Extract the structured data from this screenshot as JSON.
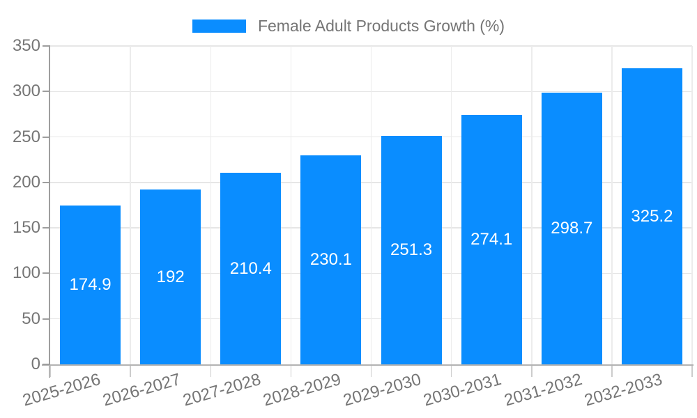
{
  "legend": {
    "label": "Female Adult Products Growth (%)"
  },
  "colors": {
    "bar": "#0a8dff",
    "grid_h": "#e6e6e6",
    "grid_v": "#ececec",
    "axis_line_y": "#9e9e9e",
    "axis_line_x": "#b3b3b3",
    "tick_x": "#cccccc",
    "tick_y": "#9e9e9e",
    "axis_text": "#757575",
    "legend_text": "#757575",
    "value_text": "#ffffff"
  },
  "chart_data": {
    "type": "bar",
    "title": "Female Adult Products Growth (%)",
    "categories": [
      "2025-2026",
      "2026-2027",
      "2027-2028",
      "2028-2029",
      "2029-2030",
      "2030-2031",
      "2031-2032",
      "2032-2033"
    ],
    "values": [
      174.9,
      192,
      210.4,
      230.1,
      251.3,
      274.1,
      298.7,
      325.2
    ],
    "value_labels": [
      "174.9",
      "192",
      "210.4",
      "230.1",
      "251.3",
      "274.1",
      "298.7",
      "325.2"
    ],
    "xlabel": "",
    "ylabel": "",
    "ylim": [
      0,
      350
    ],
    "yticks": [
      0,
      50,
      100,
      150,
      200,
      250,
      300,
      350
    ],
    "grid": true,
    "legend_position": "top",
    "x_tick_rotation_deg": -16,
    "bar_color": "#0a8dff"
  }
}
